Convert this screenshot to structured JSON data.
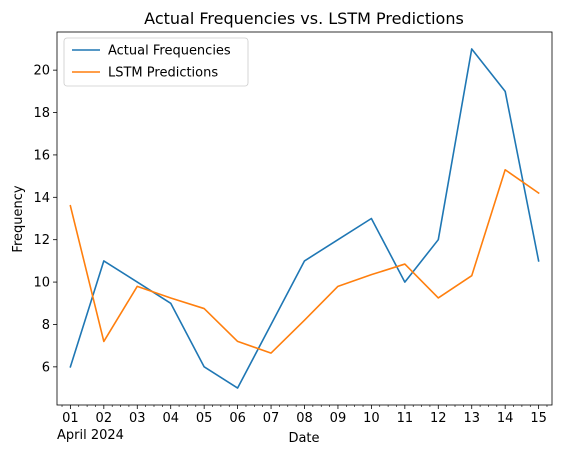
{
  "chart_data": {
    "type": "line",
    "title": "Actual Frequencies vs. LSTM Predictions",
    "xlabel": "Date",
    "ylabel": "Frequency",
    "x_tick_labels": [
      "01",
      "02",
      "03",
      "04",
      "05",
      "06",
      "07",
      "08",
      "09",
      "10",
      "11",
      "12",
      "13",
      "14",
      "15"
    ],
    "x_sub_label": "April 2024",
    "x_range": [
      0.6,
      15.4
    ],
    "ylim": [
      4.2,
      21.8
    ],
    "y_ticks": [
      6,
      8,
      10,
      12,
      14,
      16,
      18,
      20
    ],
    "grid": false,
    "legend_position": "top-left",
    "series": [
      {
        "name": "Actual Frequencies",
        "color": "#1f77b4",
        "x": [
          1,
          2,
          3,
          4,
          5,
          6,
          7,
          8,
          9,
          10,
          11,
          12,
          13,
          14,
          15
        ],
        "values": [
          6,
          11,
          10,
          9,
          6,
          5,
          8,
          11,
          12,
          13,
          10,
          12,
          21,
          19,
          11
        ]
      },
      {
        "name": "LSTM Predictions",
        "color": "#ff7f0e",
        "x": [
          1,
          2,
          3,
          4,
          5,
          6,
          7,
          8,
          9,
          10,
          11,
          12,
          13,
          14,
          15
        ],
        "values": [
          13.6,
          7.2,
          9.8,
          9.25,
          8.75,
          7.2,
          6.65,
          8.2,
          9.8,
          10.35,
          10.85,
          9.25,
          10.3,
          15.3,
          14.2
        ]
      }
    ]
  }
}
